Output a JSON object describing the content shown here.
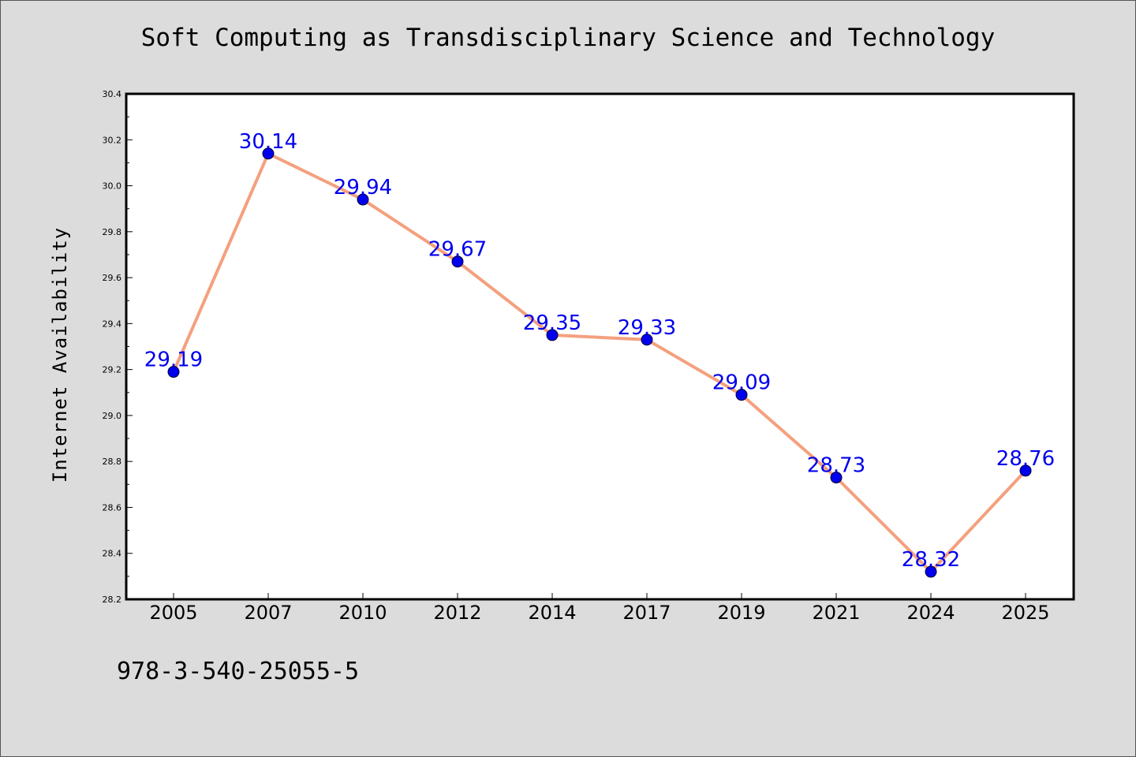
{
  "chart_data": {
    "type": "line",
    "title": "Soft Computing as Transdisciplinary Science and Technology",
    "ylabel": "Internet Availability",
    "xlabel": "",
    "categories": [
      "2005",
      "2007",
      "2010",
      "2012",
      "2014",
      "2017",
      "2019",
      "2021",
      "2024",
      "2025"
    ],
    "series": [
      {
        "values": [
          29.19,
          30.14,
          29.94,
          29.67,
          29.35,
          29.33,
          29.09,
          28.73,
          28.32,
          28.76
        ],
        "line_color": "#f4a07e",
        "marker_color": "#0000ee"
      }
    ],
    "data_labels": [
      "29.19",
      "30.14",
      "29.94",
      "29.67",
      "29.35",
      "29.33",
      "29.09",
      "28.73",
      "28.32",
      "28.76"
    ],
    "ylim": [
      28.2,
      30.4
    ],
    "yticks": [
      "28.2",
      "28.4",
      "28.6",
      "28.8",
      "29.0",
      "29.2",
      "29.4",
      "29.6",
      "29.8",
      "30.0",
      "30.2",
      "30.4"
    ],
    "grid": false,
    "legend": "none"
  },
  "footnote": "978-3-540-25055-5"
}
